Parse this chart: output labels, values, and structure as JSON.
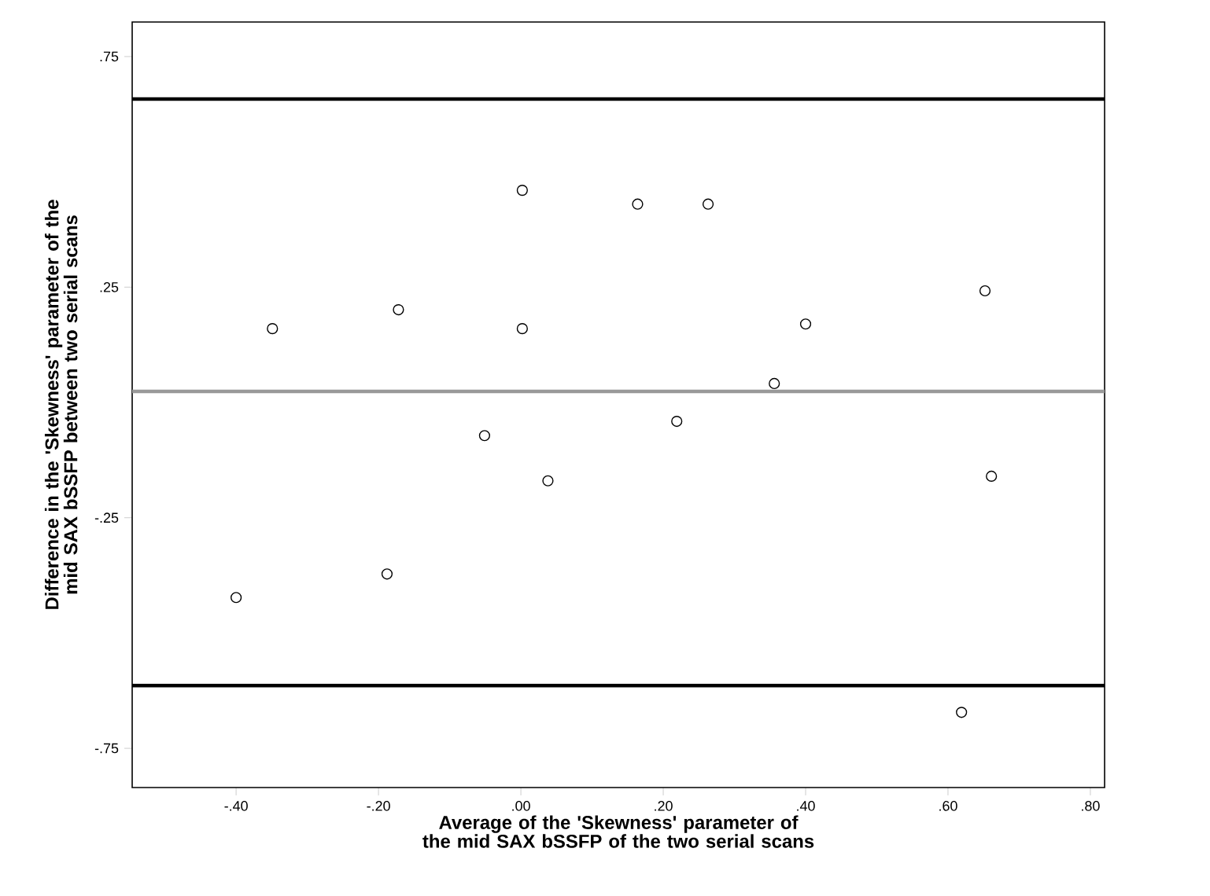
{
  "chart_data": {
    "type": "scatter",
    "xlabel": "Average of the 'Skewness' parameter of the mid SAX bSSFP of the two serial scans",
    "ylabel": "Difference in the 'Skewness' parameter of the mid SAX bSSFP between two serial scans",
    "x": [
      -0.4,
      -0.349,
      -0.172,
      -0.188,
      -0.051,
      0.002,
      0.002,
      0.038,
      0.164,
      0.219,
      0.263,
      0.356,
      0.4,
      0.619,
      0.652,
      0.661
    ],
    "values": [
      -0.423,
      0.16,
      0.201,
      -0.372,
      -0.072,
      0.46,
      0.16,
      -0.17,
      0.43,
      -0.041,
      0.43,
      0.041,
      0.17,
      -0.672,
      0.242,
      -0.16
    ],
    "color": "#000000",
    "grid": false,
    "xlim": [
      -0.546,
      0.82
    ],
    "ylim": [
      -0.835,
      0.825
    ],
    "xticks": [
      {
        "value": -0.4,
        "label": "-.40"
      },
      {
        "value": -0.2,
        "label": "-.20"
      },
      {
        "value": 0,
        "label": ".00"
      },
      {
        "value": 0.2,
        "label": ".20"
      },
      {
        "value": 0.4,
        "label": ".40"
      },
      {
        "value": 0.6,
        "label": ".60"
      },
      {
        "value": 0.8,
        "label": ".80"
      }
    ],
    "yticks": [
      {
        "value": -0.75,
        "label": "-.75"
      },
      {
        "value": -0.25,
        "label": "-.25"
      },
      {
        "value": 0.25,
        "label": ".25"
      },
      {
        "value": 0.75,
        "label": ".75"
      }
    ],
    "ref_lines": [
      {
        "axis": "y",
        "value": 0.658,
        "color": "#000000"
      },
      {
        "axis": "y",
        "value": 0.024,
        "color": "#999999"
      },
      {
        "axis": "y",
        "value": -0.614,
        "color": "#000000"
      }
    ]
  }
}
